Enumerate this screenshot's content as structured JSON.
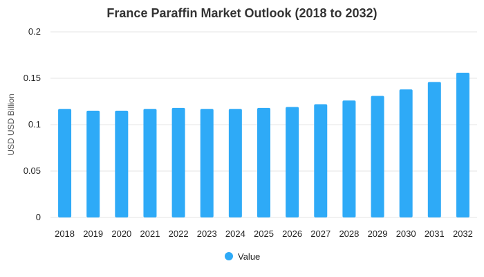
{
  "chart_data": {
    "type": "bar",
    "title": "France Paraffin Market Outlook (2018 to 2032)",
    "xlabel": "",
    "ylabel": "USD USD Billion",
    "categories": [
      "2018",
      "2019",
      "2020",
      "2021",
      "2022",
      "2023",
      "2024",
      "2025",
      "2026",
      "2027",
      "2028",
      "2029",
      "2030",
      "2031",
      "2032"
    ],
    "series": [
      {
        "name": "Value",
        "values": [
          0.117,
          0.115,
          0.115,
          0.117,
          0.118,
          0.117,
          0.117,
          0.118,
          0.119,
          0.122,
          0.126,
          0.131,
          0.138,
          0.146,
          0.156
        ]
      }
    ],
    "ylim": [
      0,
      0.2
    ],
    "yticks": [
      0,
      0.05,
      0.1,
      0.15,
      0.2
    ],
    "ytick_labels": [
      "0",
      "0.05",
      "0.1",
      "0.15",
      "0.2"
    ],
    "grid": true,
    "legend_position": "bottom-center",
    "colors": {
      "bar": "#2eaaf7",
      "grid": "#e6e6e6"
    }
  }
}
